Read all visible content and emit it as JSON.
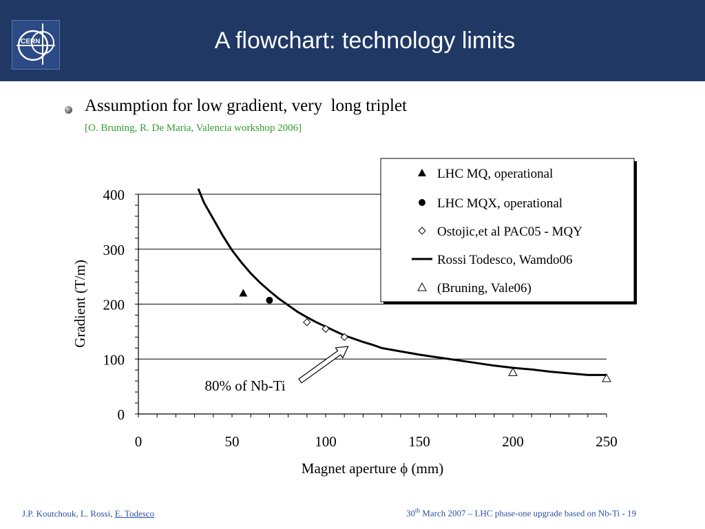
{
  "slide": {
    "title": "A flowchart: technology limits",
    "logo_text": "CERN",
    "bullet": "Assumption for low gradient, very  long triplet",
    "citation": "[O. Bruning, R. De Maria, Valencia workshop 2006]",
    "header_color": "#1f3864",
    "citation_color": "#2e9b2e",
    "footer_color": "#2c4fa8"
  },
  "footer": {
    "authors": "J.P. Koutchouk, L. Rossi, ",
    "authors_link": "E. Todesco",
    "date_num": "30",
    "date_sup": "th",
    "date_rest": " March 2007 – LHC phase-one upgrade based on Nb-Ti  - 19"
  },
  "chart_data": {
    "type": "scatter",
    "xlabel": "Magnet aperture ϕ (mm)",
    "ylabel": "Gradient  (T/m)",
    "xlim": [
      0,
      250
    ],
    "ylim": [
      0,
      400
    ],
    "xticks": [
      0,
      50,
      100,
      150,
      200,
      250
    ],
    "yticks": [
      0,
      100,
      200,
      300,
      400
    ],
    "grid": "horizontal",
    "legend_position": "top-right",
    "series": [
      {
        "name": "LHC MQ, operational",
        "marker": "filled-triangle",
        "points": [
          [
            56,
            220
          ]
        ]
      },
      {
        "name": "LHC MQX, operational",
        "marker": "filled-circle",
        "points": [
          [
            70,
            207
          ]
        ]
      },
      {
        "name": "Ostojic,et al PAC05 - MQY",
        "marker": "open-diamond",
        "points": [
          [
            90,
            167
          ],
          [
            100,
            155
          ],
          [
            110,
            140
          ]
        ]
      },
      {
        "name": "Rossi Todesco, Wamdo06",
        "marker": "line",
        "points": [
          [
            32,
            410
          ],
          [
            35,
            385
          ],
          [
            40,
            355
          ],
          [
            45,
            325
          ],
          [
            50,
            298
          ],
          [
            55,
            276
          ],
          [
            60,
            256
          ],
          [
            65,
            239
          ],
          [
            70,
            224
          ],
          [
            75,
            210
          ],
          [
            80,
            198
          ],
          [
            85,
            186
          ],
          [
            90,
            176
          ],
          [
            95,
            167
          ],
          [
            100,
            159
          ],
          [
            105,
            151
          ],
          [
            110,
            143
          ],
          [
            115,
            137
          ],
          [
            120,
            131
          ],
          [
            125,
            126
          ],
          [
            130,
            120
          ],
          [
            140,
            114
          ],
          [
            150,
            108
          ],
          [
            160,
            103
          ],
          [
            170,
            98
          ],
          [
            180,
            93
          ],
          [
            190,
            88
          ],
          [
            200,
            84
          ],
          [
            210,
            81
          ],
          [
            220,
            77
          ],
          [
            230,
            74
          ],
          [
            240,
            71
          ],
          [
            250,
            71
          ]
        ]
      },
      {
        "name": "(Bruning, Vale06)",
        "marker": "open-triangle",
        "points": [
          [
            200,
            76
          ],
          [
            250,
            65
          ]
        ]
      }
    ],
    "annotations": [
      {
        "text": "80% of Nb-Ti",
        "points_to": [
          112,
          123
        ]
      }
    ]
  }
}
